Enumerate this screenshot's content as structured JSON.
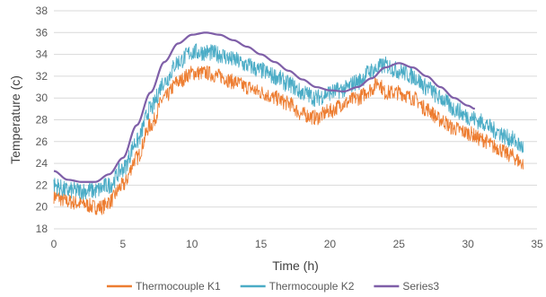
{
  "chart_data": {
    "type": "line",
    "title": "",
    "xlabel": "Time (h)",
    "ylabel": "Temperature (c)",
    "xlim": [
      0,
      35
    ],
    "ylim": [
      18,
      38
    ],
    "xticks": [
      0,
      5,
      10,
      15,
      20,
      25,
      30,
      35
    ],
    "yticks": [
      18,
      20,
      22,
      24,
      26,
      28,
      30,
      32,
      34,
      36,
      38
    ],
    "grid": "horizontal",
    "legend_position": "bottom",
    "series": [
      {
        "name": "Thermocouple K1",
        "color": "#ED7D31",
        "noise": 0.7,
        "x": [
          0,
          1,
          2,
          3,
          3.5,
          4,
          5,
          6,
          7,
          8,
          9,
          10,
          11,
          12,
          13,
          14,
          15,
          16,
          17,
          18,
          19,
          20,
          21,
          22,
          23,
          23.5,
          24,
          25,
          26,
          27,
          28,
          29,
          30,
          31,
          32,
          33,
          34
        ],
        "values": [
          21.0,
          20.5,
          20.3,
          20.0,
          20.0,
          20.5,
          22.0,
          24.5,
          27.5,
          30.0,
          31.5,
          32.3,
          32.3,
          32.0,
          31.5,
          31.0,
          30.5,
          30.0,
          29.5,
          28.5,
          28.2,
          28.8,
          29.5,
          30.0,
          30.8,
          31.5,
          30.5,
          30.5,
          30.0,
          29.0,
          28.0,
          27.2,
          26.8,
          26.2,
          25.5,
          24.8,
          24.0
        ]
      },
      {
        "name": "Thermocouple K2",
        "color": "#4BACC6",
        "noise": 0.8,
        "x": [
          0,
          1,
          2,
          3,
          4,
          5,
          6,
          7,
          8,
          9,
          10,
          11,
          12,
          13,
          14,
          15,
          16,
          17,
          18,
          19,
          20,
          21,
          22,
          23,
          24,
          25,
          26,
          27,
          28,
          29,
          30,
          31,
          32,
          33,
          34
        ],
        "values": [
          22.0,
          21.5,
          21.5,
          21.5,
          22.0,
          23.5,
          26.0,
          29.0,
          31.5,
          33.3,
          34.2,
          34.2,
          34.0,
          33.5,
          33.0,
          32.5,
          32.0,
          31.3,
          30.5,
          30.0,
          30.5,
          30.8,
          31.5,
          32.5,
          33.0,
          32.5,
          32.0,
          31.0,
          30.0,
          29.0,
          28.3,
          27.8,
          27.0,
          26.3,
          25.5
        ]
      },
      {
        "name": "Series3",
        "color": "#7F5FA8",
        "noise": 0,
        "x": [
          0,
          1,
          2,
          3,
          4,
          5,
          6,
          7,
          8,
          9,
          10,
          11,
          12,
          13,
          14,
          15,
          16,
          17,
          18,
          19,
          20,
          21,
          22,
          23,
          24,
          25,
          26,
          27,
          28,
          29,
          30,
          30.5
        ],
        "values": [
          23.3,
          22.5,
          22.3,
          22.3,
          23.0,
          24.5,
          27.5,
          30.5,
          33.3,
          35.0,
          35.8,
          36.0,
          35.8,
          35.3,
          34.7,
          34.0,
          33.3,
          32.5,
          31.7,
          31.0,
          30.7,
          30.6,
          31.0,
          31.8,
          32.8,
          33.2,
          32.8,
          32.0,
          31.0,
          30.0,
          29.3,
          29.0
        ]
      }
    ]
  }
}
